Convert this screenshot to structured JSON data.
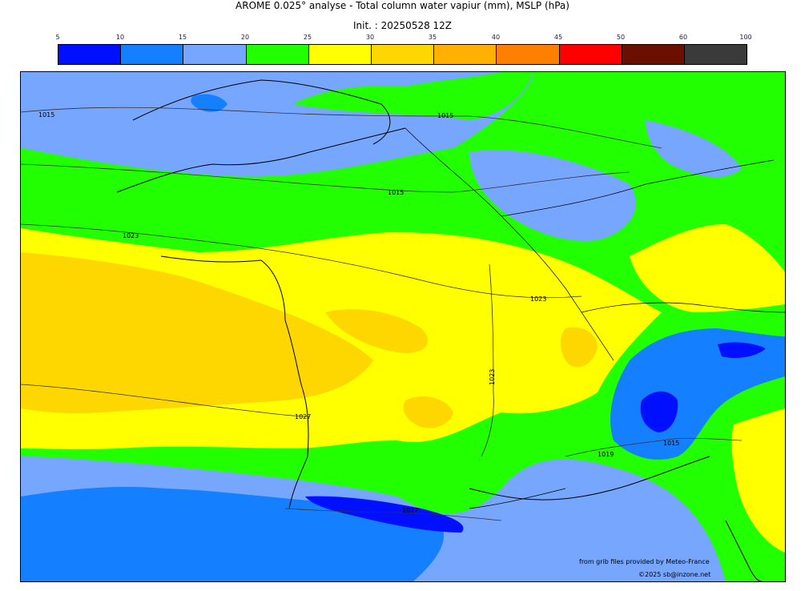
{
  "title": "AROME 0.025° analyse - Total column water vapiur (mm), MSLP (hPa)",
  "subtitle": "Init. : 20250528 12Z",
  "colorbar": {
    "ticks": [
      "5",
      "10",
      "15",
      "20",
      "25",
      "30",
      "35",
      "40",
      "45",
      "50",
      "60",
      "100"
    ],
    "colors": [
      "#0010ff",
      "#1480ff",
      "#77a6ff",
      "#22ff00",
      "#ffff00",
      "#ffd700",
      "#ffb000",
      "#ff8000",
      "#ff0000",
      "#6b1000",
      "#3a3a3a"
    ]
  },
  "map": {
    "background": "#77a6ff",
    "isobar_labels": [
      "1015",
      "1015",
      "1015",
      "1023",
      "1023",
      "1023",
      "1027",
      "1019",
      "1015",
      "1027"
    ]
  },
  "credits": {
    "line1": "from grib files provided by Meteo-France",
    "line2": "©2025 sb@inzone.net"
  }
}
